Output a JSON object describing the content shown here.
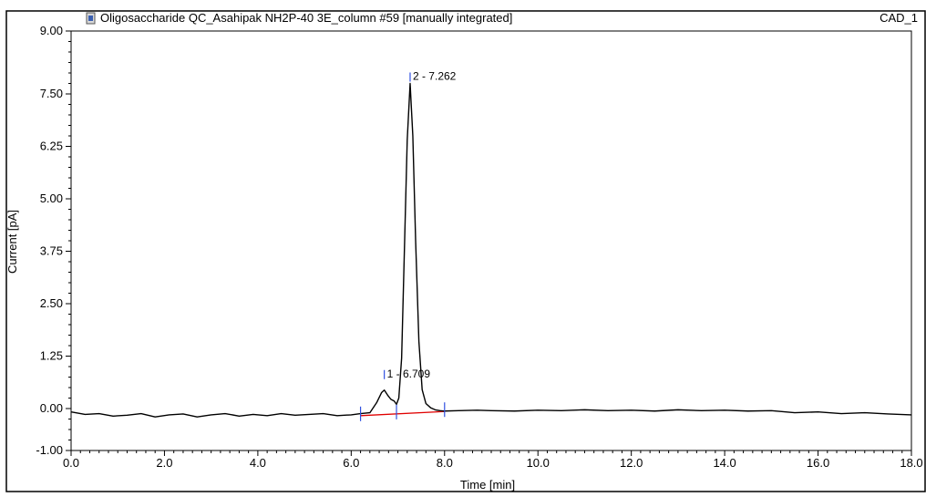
{
  "window": {
    "title": "Oligosaccharide QC_Asahipak NH2P-40 3E_column #59 [manually integrated]",
    "channel": "CAD_1",
    "icon": "chromatogram-doc-icon"
  },
  "chart_data": {
    "type": "line",
    "title": "Oligosaccharide QC_Asahipak NH2P-40 3E_column #59 [manually integrated]",
    "xlabel": "Time [min]",
    "ylabel": "Current [pA]",
    "xlim": [
      0.0,
      18.0
    ],
    "ylim": [
      -1.0,
      9.0
    ],
    "x_ticks": [
      "0.0",
      "2.0",
      "4.0",
      "6.0",
      "8.0",
      "10.0",
      "12.0",
      "14.0",
      "16.0",
      "18.0"
    ],
    "y_ticks": [
      "9.00",
      "7.50",
      "6.25",
      "5.00",
      "3.75",
      "2.50",
      "1.25",
      "0.00",
      "-1.00"
    ],
    "grid": false,
    "colors": {
      "trace": "#000000",
      "baseline": "#e00000",
      "markers": "#3050e0",
      "frame": "#000000"
    },
    "series": [
      {
        "x": [
          0.0,
          0.3,
          0.6,
          0.9,
          1.2,
          1.5,
          1.8,
          2.1,
          2.4,
          2.7,
          3.0,
          3.3,
          3.6,
          3.9,
          4.2,
          4.5,
          4.8,
          5.1,
          5.4,
          5.7,
          6.0,
          6.2,
          6.4,
          6.55,
          6.65,
          6.709,
          6.78,
          6.85,
          6.92,
          6.97,
          7.02,
          7.08,
          7.14,
          7.2,
          7.262,
          7.32,
          7.38,
          7.45,
          7.52,
          7.6,
          7.7,
          7.8,
          7.9,
          8.0,
          8.3,
          8.7,
          9.0,
          9.5,
          10.0,
          10.5,
          11.0,
          11.5,
          12.0,
          12.5,
          13.0,
          13.5,
          14.0,
          14.5,
          15.0,
          15.5,
          16.0,
          16.5,
          17.0,
          17.5,
          18.0
        ],
        "y": [
          -0.08,
          -0.14,
          -0.12,
          -0.18,
          -0.16,
          -0.12,
          -0.2,
          -0.15,
          -0.13,
          -0.2,
          -0.15,
          -0.12,
          -0.18,
          -0.14,
          -0.17,
          -0.12,
          -0.16,
          -0.14,
          -0.12,
          -0.17,
          -0.15,
          -0.12,
          -0.1,
          0.15,
          0.38,
          0.44,
          0.32,
          0.22,
          0.18,
          0.1,
          0.25,
          1.2,
          3.8,
          6.4,
          7.75,
          6.5,
          4.0,
          1.6,
          0.45,
          0.12,
          0.02,
          -0.03,
          -0.05,
          -0.06,
          -0.05,
          -0.04,
          -0.05,
          -0.06,
          -0.04,
          -0.05,
          -0.03,
          -0.05,
          -0.04,
          -0.06,
          -0.03,
          -0.05,
          -0.04,
          -0.06,
          -0.05,
          -0.1,
          -0.08,
          -0.12,
          -0.1,
          -0.13,
          -0.15
        ]
      }
    ],
    "baseline": {
      "x": [
        6.2,
        8.0
      ],
      "y": [
        -0.17,
        -0.07
      ]
    },
    "integration_markers": [
      6.2,
      6.97,
      8.0
    ],
    "peaks": [
      {
        "label": "1 - 6.709",
        "x": 6.709,
        "y": 0.44
      },
      {
        "label": "2 - 7.262",
        "x": 7.262,
        "y": 7.75
      }
    ]
  }
}
